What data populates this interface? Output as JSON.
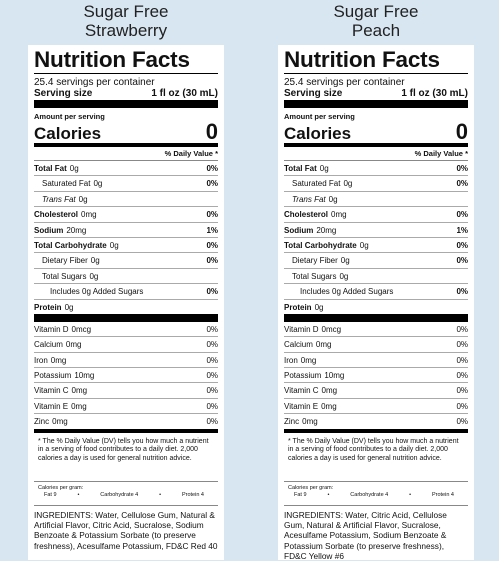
{
  "labels": [
    {
      "product": [
        "Sugar Free",
        "Strawberry"
      ],
      "heading": "Nutrition Facts",
      "servings": "25.4 servings per container",
      "serving_size": {
        "label": "Serving size",
        "value": "1 fl oz (30 mL)"
      },
      "amount_per_serving": "Amount per serving",
      "calories": {
        "label": "Calories",
        "value": "0"
      },
      "dv_header": "% Daily Value *",
      "nutrients": [
        {
          "name": "Total Fat",
          "amount": "0g",
          "dv": "0%"
        },
        {
          "name": "Saturated Fat",
          "amount": "0g",
          "dv": "0%"
        },
        {
          "name": "Trans Fat",
          "amount": "0g"
        },
        {
          "name": "Cholesterol",
          "amount": "0mg",
          "dv": "0%"
        },
        {
          "name": "Sodium",
          "amount": "20mg",
          "dv": "1%"
        },
        {
          "name": "Total Carbohydrate",
          "amount": "0g",
          "dv": "0%"
        },
        {
          "name": "Dietary Fiber",
          "amount": "0g",
          "dv": "0%"
        },
        {
          "name": "Total Sugars",
          "amount": "0g"
        },
        {
          "name": "Includes 0g Added Sugars",
          "dv": "0%"
        },
        {
          "name": "Protein",
          "amount": "0g"
        }
      ],
      "vitamins": [
        {
          "name": "Vitamin D",
          "amount": "0mcg",
          "dv": "0%"
        },
        {
          "name": "Calcium",
          "amount": "0mg",
          "dv": "0%"
        },
        {
          "name": "Iron",
          "amount": "0mg",
          "dv": "0%"
        },
        {
          "name": "Potassium",
          "amount": "10mg",
          "dv": "0%"
        },
        {
          "name": "Vitamin C",
          "amount": "0mg",
          "dv": "0%"
        },
        {
          "name": "Vitamin E",
          "amount": "0mg",
          "dv": "0%"
        },
        {
          "name": "Zinc",
          "amount": "0mg",
          "dv": "0%"
        }
      ],
      "footnote": "* The % Daily Value (DV) tells you how much a nutrient in a serving of food contributes to a daily diet. 2,000 calories a day is used for general nutrition advice.",
      "calories_per_gram": {
        "label": "Calories per gram:",
        "items": [
          "Fat 9",
          "Carbohydrate 4",
          "Protein 4"
        ]
      },
      "ingredients": "INGREDIENTS: Water, Cellulose Gum, Natural & Artificial Flavor, Citric Acid, Sucralose, Sodium Benzoate & Potassium Sorbate (to preserve freshness), Acesulfame Potassium, FD&C Red 40"
    },
    {
      "product": [
        "Sugar Free",
        "Peach"
      ],
      "heading": "Nutrition Facts",
      "servings": "25.4 servings per container",
      "serving_size": {
        "label": "Serving size",
        "value": "1 fl oz (30 mL)"
      },
      "amount_per_serving": "Amount per serving",
      "calories": {
        "label": "Calories",
        "value": "0"
      },
      "dv_header": "% Daily Value *",
      "nutrients": [
        {
          "name": "Total Fat",
          "amount": "0g",
          "dv": "0%"
        },
        {
          "name": "Saturated Fat",
          "amount": "0g",
          "dv": "0%"
        },
        {
          "name": "Trans Fat",
          "amount": "0g"
        },
        {
          "name": "Cholesterol",
          "amount": "0mg",
          "dv": "0%"
        },
        {
          "name": "Sodium",
          "amount": "20mg",
          "dv": "1%"
        },
        {
          "name": "Total Carbohydrate",
          "amount": "0g",
          "dv": "0%"
        },
        {
          "name": "Dietary Fiber",
          "amount": "0g",
          "dv": "0%"
        },
        {
          "name": "Total Sugars",
          "amount": "0g"
        },
        {
          "name": "Includes 0g Added Sugars",
          "dv": "0%"
        },
        {
          "name": "Protein",
          "amount": "0g"
        }
      ],
      "vitamins": [
        {
          "name": "Vitamin D",
          "amount": "0mcg",
          "dv": "0%"
        },
        {
          "name": "Calcium",
          "amount": "0mg",
          "dv": "0%"
        },
        {
          "name": "Iron",
          "amount": "0mg",
          "dv": "0%"
        },
        {
          "name": "Potassium",
          "amount": "10mg",
          "dv": "0%"
        },
        {
          "name": "Vitamin C",
          "amount": "0mg",
          "dv": "0%"
        },
        {
          "name": "Vitamin E",
          "amount": "0mg",
          "dv": "0%"
        },
        {
          "name": "Zinc",
          "amount": "0mg",
          "dv": "0%"
        }
      ],
      "footnote": "* The % Daily Value (DV) tells you how much a nutrient in a serving of food contributes to a daily diet. 2,000 calories a day is used for general nutrition advice.",
      "calories_per_gram": {
        "label": "Calories per gram:",
        "items": [
          "Fat 9",
          "Carbohydrate 4",
          "Protein 4"
        ]
      },
      "ingredients": "INGREDIENTS: Water, Citric Acid, Cellulose Gum, Natural & Artificial Flavor, Sucralose, Acesulfame Potassium, Sodium Benzoate & Potassium Sorbate (to preserve freshness), FD&C Yellow #6"
    }
  ]
}
